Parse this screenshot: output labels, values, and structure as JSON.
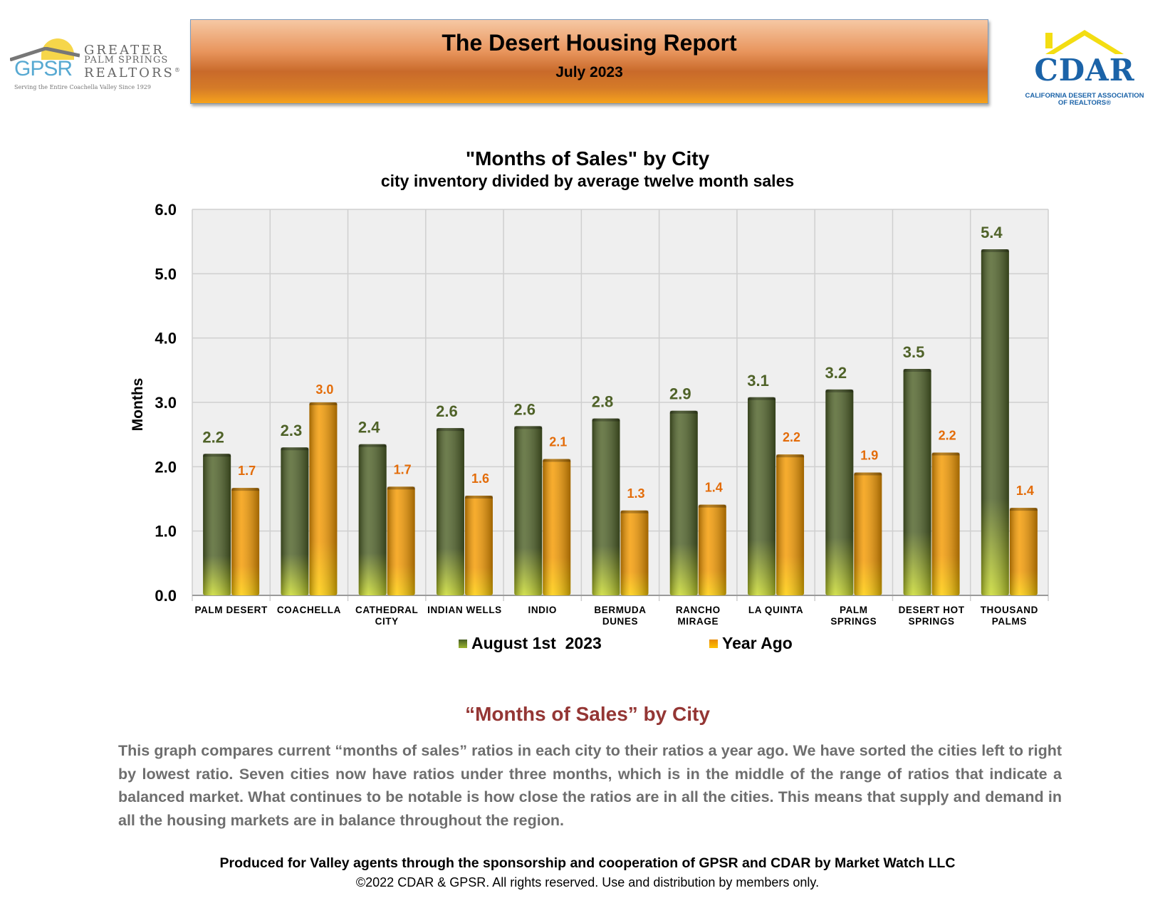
{
  "header": {
    "gpsr": {
      "abbr": "GPSR",
      "line1": "GREATER",
      "line2": "PALM SPRINGS",
      "line3": "REALTORS",
      "registered": "®",
      "tagline": "Serving the Entire Coachella Valley Since 1929"
    },
    "report_title": "The Desert Housing Report",
    "report_date": "July 2023",
    "cdar": {
      "abbr": "CDAR",
      "full_name_1": "CALIFORNIA DESERT ASSOCIATION",
      "full_name_2": "OF REALTORS®"
    }
  },
  "chart_data": {
    "type": "bar",
    "title": "\"Months of Sales\" by City",
    "subtitle": "city inventory divided by average twelve month sales",
    "xlabel": "",
    "ylabel": "Months",
    "ylim": [
      0,
      6
    ],
    "yticks": [
      "0.0",
      "1.0",
      "2.0",
      "3.0",
      "4.0",
      "5.0",
      "6.0"
    ],
    "grid": true,
    "legend_position": "bottom",
    "categories": [
      [
        "PALM DESERT"
      ],
      [
        "COACHELLA"
      ],
      [
        "CATHEDRAL",
        "CITY"
      ],
      [
        "INDIAN WELLS"
      ],
      [
        "INDIO"
      ],
      [
        "BERMUDA",
        "DUNES"
      ],
      [
        "RANCHO",
        "MIRAGE"
      ],
      [
        "LA QUINTA"
      ],
      [
        "PALM",
        "SPRINGS"
      ],
      [
        "DESERT HOT",
        "SPRINGS"
      ],
      [
        "THOUSAND",
        "PALMS"
      ]
    ],
    "series": [
      {
        "name": "August 1st  2023",
        "color": "#4f6228",
        "highlight": "#c8d92a",
        "label_color": "#4f6228",
        "values": [
          2.2,
          2.3,
          2.35,
          2.6,
          2.63,
          2.75,
          2.87,
          3.08,
          3.2,
          3.52,
          5.38
        ],
        "labels": [
          "2.2",
          "2.3",
          "2.4",
          "2.6",
          "2.6",
          "2.8",
          "2.9",
          "3.1",
          "3.2",
          "3.5",
          "5.4"
        ]
      },
      {
        "name": "Year Ago",
        "color": "#f59a00",
        "highlight": "#ffcc00",
        "label_color": "#e36c09",
        "values": [
          1.67,
          3.0,
          1.69,
          1.55,
          2.12,
          1.32,
          1.41,
          2.19,
          1.91,
          2.22,
          1.36
        ],
        "labels": [
          "1.7",
          "3.0",
          "1.7",
          "1.6",
          "2.1",
          "1.3",
          "1.4",
          "2.2",
          "1.9",
          "2.2",
          "1.4"
        ]
      }
    ]
  },
  "commentary": {
    "heading": "“Months of Sales” by City",
    "body": "This graph compares current “months of sales” ratios in each city to their ratios a year ago. We have sorted the cities left to right by lowest ratio. Seven cities now have ratios under three months, which is in the middle of the range of ratios that indicate a balanced market. What continues to be notable is how close the ratios are in all the cities. This means that supply and demand in all the housing markets are in balance throughout the region."
  },
  "footer": {
    "credit": "Produced for Valley agents through the sponsorship and cooperation of GPSR and CDAR by Market Watch LLC",
    "copyright": "©2022 CDAR & GPSR.  All rights reserved.  Use and distribution by members only."
  }
}
